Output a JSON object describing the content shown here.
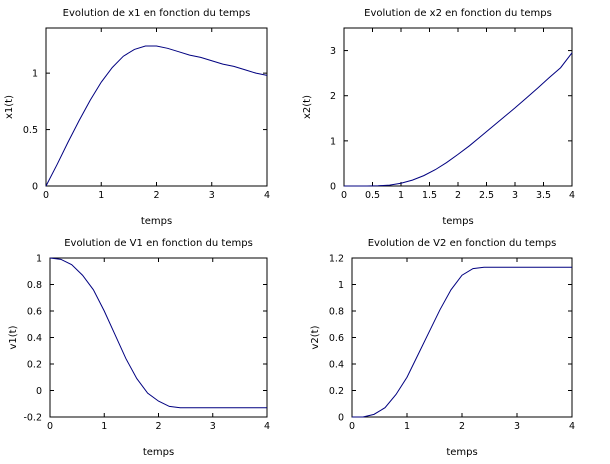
{
  "chart_data": [
    {
      "type": "line",
      "title": "Evolution de x1 en fonction du temps",
      "xlabel": "temps",
      "ylabel": "x1(t)",
      "xlim": [
        0,
        4
      ],
      "ylim": [
        0,
        1.4
      ],
      "xticks": [
        0,
        1,
        2,
        3,
        4
      ],
      "xtick_labels": [
        "0",
        "1",
        "2",
        "3",
        "4"
      ],
      "yticks": [
        0,
        0.5,
        1
      ],
      "ytick_labels": [
        "0",
        "0.5",
        "1"
      ],
      "series": [
        {
          "color": "#000080",
          "x": [
            0,
            0.2,
            0.4,
            0.6,
            0.8,
            1.0,
            1.2,
            1.4,
            1.6,
            1.8,
            2.0,
            2.2,
            2.4,
            2.6,
            2.8,
            3.0,
            3.2,
            3.4,
            3.6,
            3.8,
            4.0
          ],
          "y": [
            0,
            0.19,
            0.39,
            0.58,
            0.76,
            0.92,
            1.05,
            1.15,
            1.21,
            1.24,
            1.24,
            1.22,
            1.19,
            1.16,
            1.14,
            1.11,
            1.08,
            1.06,
            1.03,
            1.0,
            0.98
          ]
        }
      ]
    },
    {
      "type": "line",
      "title": "Evolution de x2 en fonction du temps",
      "xlabel": "temps",
      "ylabel": "x2(t)",
      "xlim": [
        0,
        4
      ],
      "ylim": [
        0,
        3.5
      ],
      "xticks": [
        0,
        0.5,
        1,
        1.5,
        2,
        2.5,
        3,
        3.5,
        4
      ],
      "xtick_labels": [
        "0",
        "0.5",
        "1",
        "1.5",
        "2",
        "2.5",
        "3",
        "3.5",
        "4"
      ],
      "yticks": [
        0,
        1,
        2,
        3
      ],
      "ytick_labels": [
        "0",
        "1",
        "2",
        "3"
      ],
      "series": [
        {
          "color": "#000080",
          "x": [
            0,
            0.4,
            0.6,
            0.8,
            1.0,
            1.2,
            1.4,
            1.6,
            1.8,
            2.0,
            2.2,
            2.4,
            2.6,
            2.8,
            3.0,
            3.2,
            3.4,
            3.6,
            3.8,
            4.0
          ],
          "y": [
            0,
            0,
            0.005,
            0.02,
            0.06,
            0.13,
            0.23,
            0.36,
            0.52,
            0.7,
            0.89,
            1.1,
            1.31,
            1.52,
            1.73,
            1.95,
            2.17,
            2.4,
            2.62,
            2.95
          ]
        }
      ]
    },
    {
      "type": "line",
      "title": "Evolution de V1 en fonction du temps",
      "xlabel": "temps",
      "ylabel": "v1(t)",
      "xlim": [
        0,
        4
      ],
      "ylim": [
        -0.2,
        1
      ],
      "xticks": [
        0,
        1,
        2,
        3,
        4
      ],
      "xtick_labels": [
        "0",
        "1",
        "2",
        "3",
        "4"
      ],
      "yticks": [
        -0.2,
        0,
        0.2,
        0.4,
        0.6,
        0.8,
        1
      ],
      "ytick_labels": [
        "-0.2",
        "0",
        "0.2",
        "0.4",
        "0.6",
        "0.8",
        "1"
      ],
      "series": [
        {
          "color": "#000080",
          "x": [
            0,
            0.2,
            0.4,
            0.6,
            0.8,
            1.0,
            1.2,
            1.4,
            1.6,
            1.8,
            2.0,
            2.2,
            2.4,
            2.6,
            2.8,
            3.0,
            3.2,
            3.4,
            3.6,
            3.8,
            4.0
          ],
          "y": [
            1.0,
            0.99,
            0.95,
            0.87,
            0.76,
            0.6,
            0.42,
            0.24,
            0.09,
            -0.02,
            -0.08,
            -0.12,
            -0.13,
            -0.13,
            -0.13,
            -0.13,
            -0.13,
            -0.13,
            -0.13,
            -0.13,
            -0.13
          ]
        }
      ]
    },
    {
      "type": "line",
      "title": "Evolution de V2 en fonction du temps",
      "xlabel": "temps",
      "ylabel": "v2(t)",
      "xlim": [
        0,
        4
      ],
      "ylim": [
        0,
        1.2
      ],
      "xticks": [
        0,
        1,
        2,
        3,
        4
      ],
      "xtick_labels": [
        "0",
        "1",
        "2",
        "3",
        "4"
      ],
      "yticks": [
        0,
        0.2,
        0.4,
        0.6,
        0.8,
        1,
        1.2
      ],
      "ytick_labels": [
        "0",
        "0.2",
        "0.4",
        "0.6",
        "0.8",
        "1",
        "1.2"
      ],
      "series": [
        {
          "color": "#000080",
          "x": [
            0,
            0.2,
            0.4,
            0.6,
            0.8,
            1.0,
            1.2,
            1.4,
            1.6,
            1.8,
            2.0,
            2.2,
            2.4,
            2.6,
            2.8,
            3.0,
            3.2,
            3.4,
            3.6,
            3.8,
            4.0
          ],
          "y": [
            0,
            0,
            0.02,
            0.07,
            0.17,
            0.3,
            0.47,
            0.64,
            0.81,
            0.96,
            1.07,
            1.12,
            1.13,
            1.13,
            1.13,
            1.13,
            1.13,
            1.13,
            1.13,
            1.13,
            1.13
          ]
        }
      ]
    }
  ]
}
